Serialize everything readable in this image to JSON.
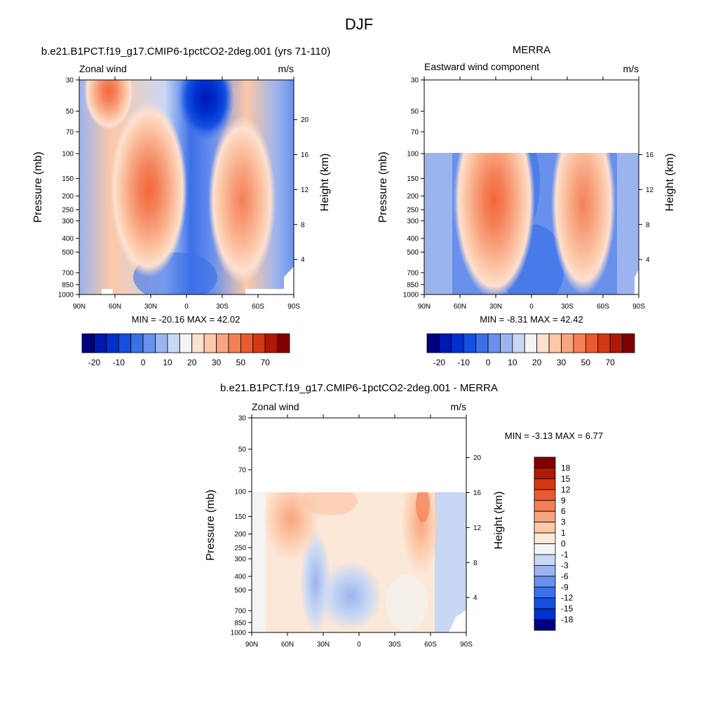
{
  "figure": {
    "title": "DJF"
  },
  "chart_data": [
    {
      "type": "heatmap",
      "title": "b.e21.B1PCT.f19_g17.CMIP6-1pctCO2-2deg.001 (yrs 71-110)",
      "left_string": "Zonal wind",
      "right_string": "m/s",
      "ylabel": "Pressure (mb)",
      "ylabel_right": "Height (km)",
      "x_ticks": [
        "90N",
        "60N",
        "30N",
        "0",
        "30S",
        "60S",
        "90S"
      ],
      "y_ticks": [
        "30",
        "50",
        "70",
        "100",
        "150",
        "200",
        "250",
        "300",
        "400",
        "500",
        "700",
        "850",
        "1000"
      ],
      "y_ticks_right": [
        "20",
        "16",
        "12",
        "8",
        "4"
      ],
      "data_top_mb": 30,
      "min_max_text": "MIN = -20.16  MAX =  42.02",
      "jets": [
        {
          "lat": 30,
          "p_mb": 180,
          "max": 42
        },
        {
          "lat": -48,
          "p_mb": 220,
          "max": 38
        },
        {
          "lat": 65,
          "p_mb": 35,
          "max": 30
        }
      ],
      "min_core": {
        "lat": -15,
        "p_mb": 35,
        "min": -20.16
      },
      "colorbar": {
        "labels": [
          "-20",
          "-10",
          "0",
          "10",
          "20",
          "30",
          "50",
          "70"
        ],
        "colors": [
          "#000080",
          "#0018b0",
          "#0030d0",
          "#1450e0",
          "#3c70e8",
          "#6890ec",
          "#9cb4ee",
          "#c8d8f4",
          "#f4f4f4",
          "#fce0d0",
          "#fcc8a8",
          "#f8a480",
          "#f48058",
          "#e85a30",
          "#d43810",
          "#b01808",
          "#800000"
        ]
      }
    },
    {
      "type": "heatmap",
      "title": "MERRA",
      "left_string": "Eastward wind component",
      "right_string": "m/s",
      "ylabel": "Pressure (mb)",
      "ylabel_right": "Height (km)",
      "x_ticks": [
        "90N",
        "60N",
        "30N",
        "0",
        "30S",
        "60S",
        "90S"
      ],
      "y_ticks": [
        "30",
        "50",
        "70",
        "100",
        "150",
        "200",
        "250",
        "300",
        "400",
        "500",
        "700",
        "850",
        "1000"
      ],
      "y_ticks_right": [
        "16",
        "12",
        "8",
        "4"
      ],
      "data_top_mb": 100,
      "min_max_text": "MIN =  -8.31  MAX =  42.42",
      "jets": [
        {
          "lat": 30,
          "p_mb": 190,
          "max": 42.42
        },
        {
          "lat": -45,
          "p_mb": 230,
          "max": 36
        }
      ],
      "colorbar": {
        "labels": [
          "-20",
          "-10",
          "0",
          "10",
          "20",
          "30",
          "50",
          "70"
        ],
        "colors": [
          "#000080",
          "#0018b0",
          "#0030d0",
          "#1450e0",
          "#3c70e8",
          "#6890ec",
          "#9cb4ee",
          "#c8d8f4",
          "#f4f4f4",
          "#fce0d0",
          "#fcc8a8",
          "#f8a480",
          "#f48058",
          "#e85a30",
          "#d43810",
          "#b01808",
          "#800000"
        ]
      }
    },
    {
      "type": "heatmap",
      "title": "b.e21.B1PCT.f19_g17.CMIP6-1pctCO2-2deg.001 - MERRA",
      "left_string": "Zonal wind",
      "right_string": "m/s",
      "ylabel": "Pressure (mb)",
      "ylabel_right": "Height (km)",
      "x_ticks": [
        "90N",
        "60N",
        "30N",
        "0",
        "30S",
        "60S",
        "90S"
      ],
      "y_ticks": [
        "30",
        "50",
        "70",
        "100",
        "150",
        "200",
        "250",
        "300",
        "400",
        "500",
        "700",
        "850",
        "1000"
      ],
      "y_ticks_right": [
        "20",
        "16",
        "12",
        "8",
        "4"
      ],
      "data_top_mb": 100,
      "min_max_text": "MIN =  -3.13  MAX =   6.77",
      "colorbar": {
        "labels": [
          "18",
          "15",
          "12",
          "9",
          "6",
          "3",
          "1",
          "0",
          "-1",
          "-3",
          "-6",
          "-9",
          "-12",
          "-15",
          "-18"
        ],
        "colors": [
          "#800000",
          "#b01808",
          "#d43810",
          "#e85a30",
          "#f48058",
          "#f8a480",
          "#fcc8a8",
          "#fce8d8",
          "#f4f4f4",
          "#c8d8f4",
          "#9cb4ee",
          "#6890ec",
          "#3c70e8",
          "#1450e0",
          "#0030d0",
          "#000080"
        ]
      }
    }
  ]
}
